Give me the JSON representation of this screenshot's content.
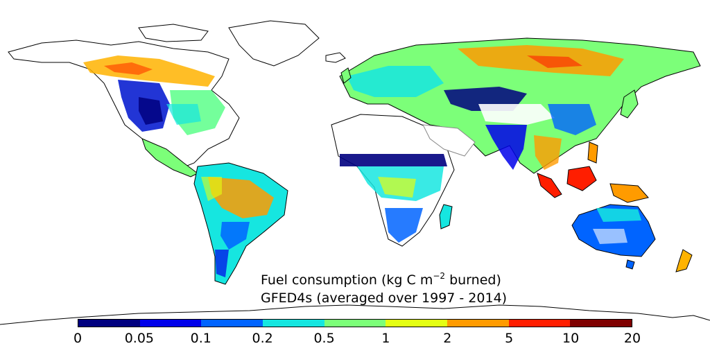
{
  "caption": {
    "line1_prefix": "Fuel consumption (kg C m",
    "line1_exponent": "−2",
    "line1_suffix": " burned)",
    "line2": "GFED4s (averaged over 1997 - 2014)"
  },
  "colorbar": {
    "colors": [
      "#00007f",
      "#0000ea",
      "#0064ff",
      "#16e6e0",
      "#7cff79",
      "#e4ff13",
      "#ff9b00",
      "#ff1e00",
      "#7f0000"
    ],
    "ticks": [
      "0",
      "0.05",
      "0.1",
      "0.2",
      "0.5",
      "1",
      "2",
      "5",
      "10",
      "20"
    ]
  },
  "palette": {
    "desert": "#ffffff",
    "coastline": "#000000",
    "border": "#888888"
  }
}
